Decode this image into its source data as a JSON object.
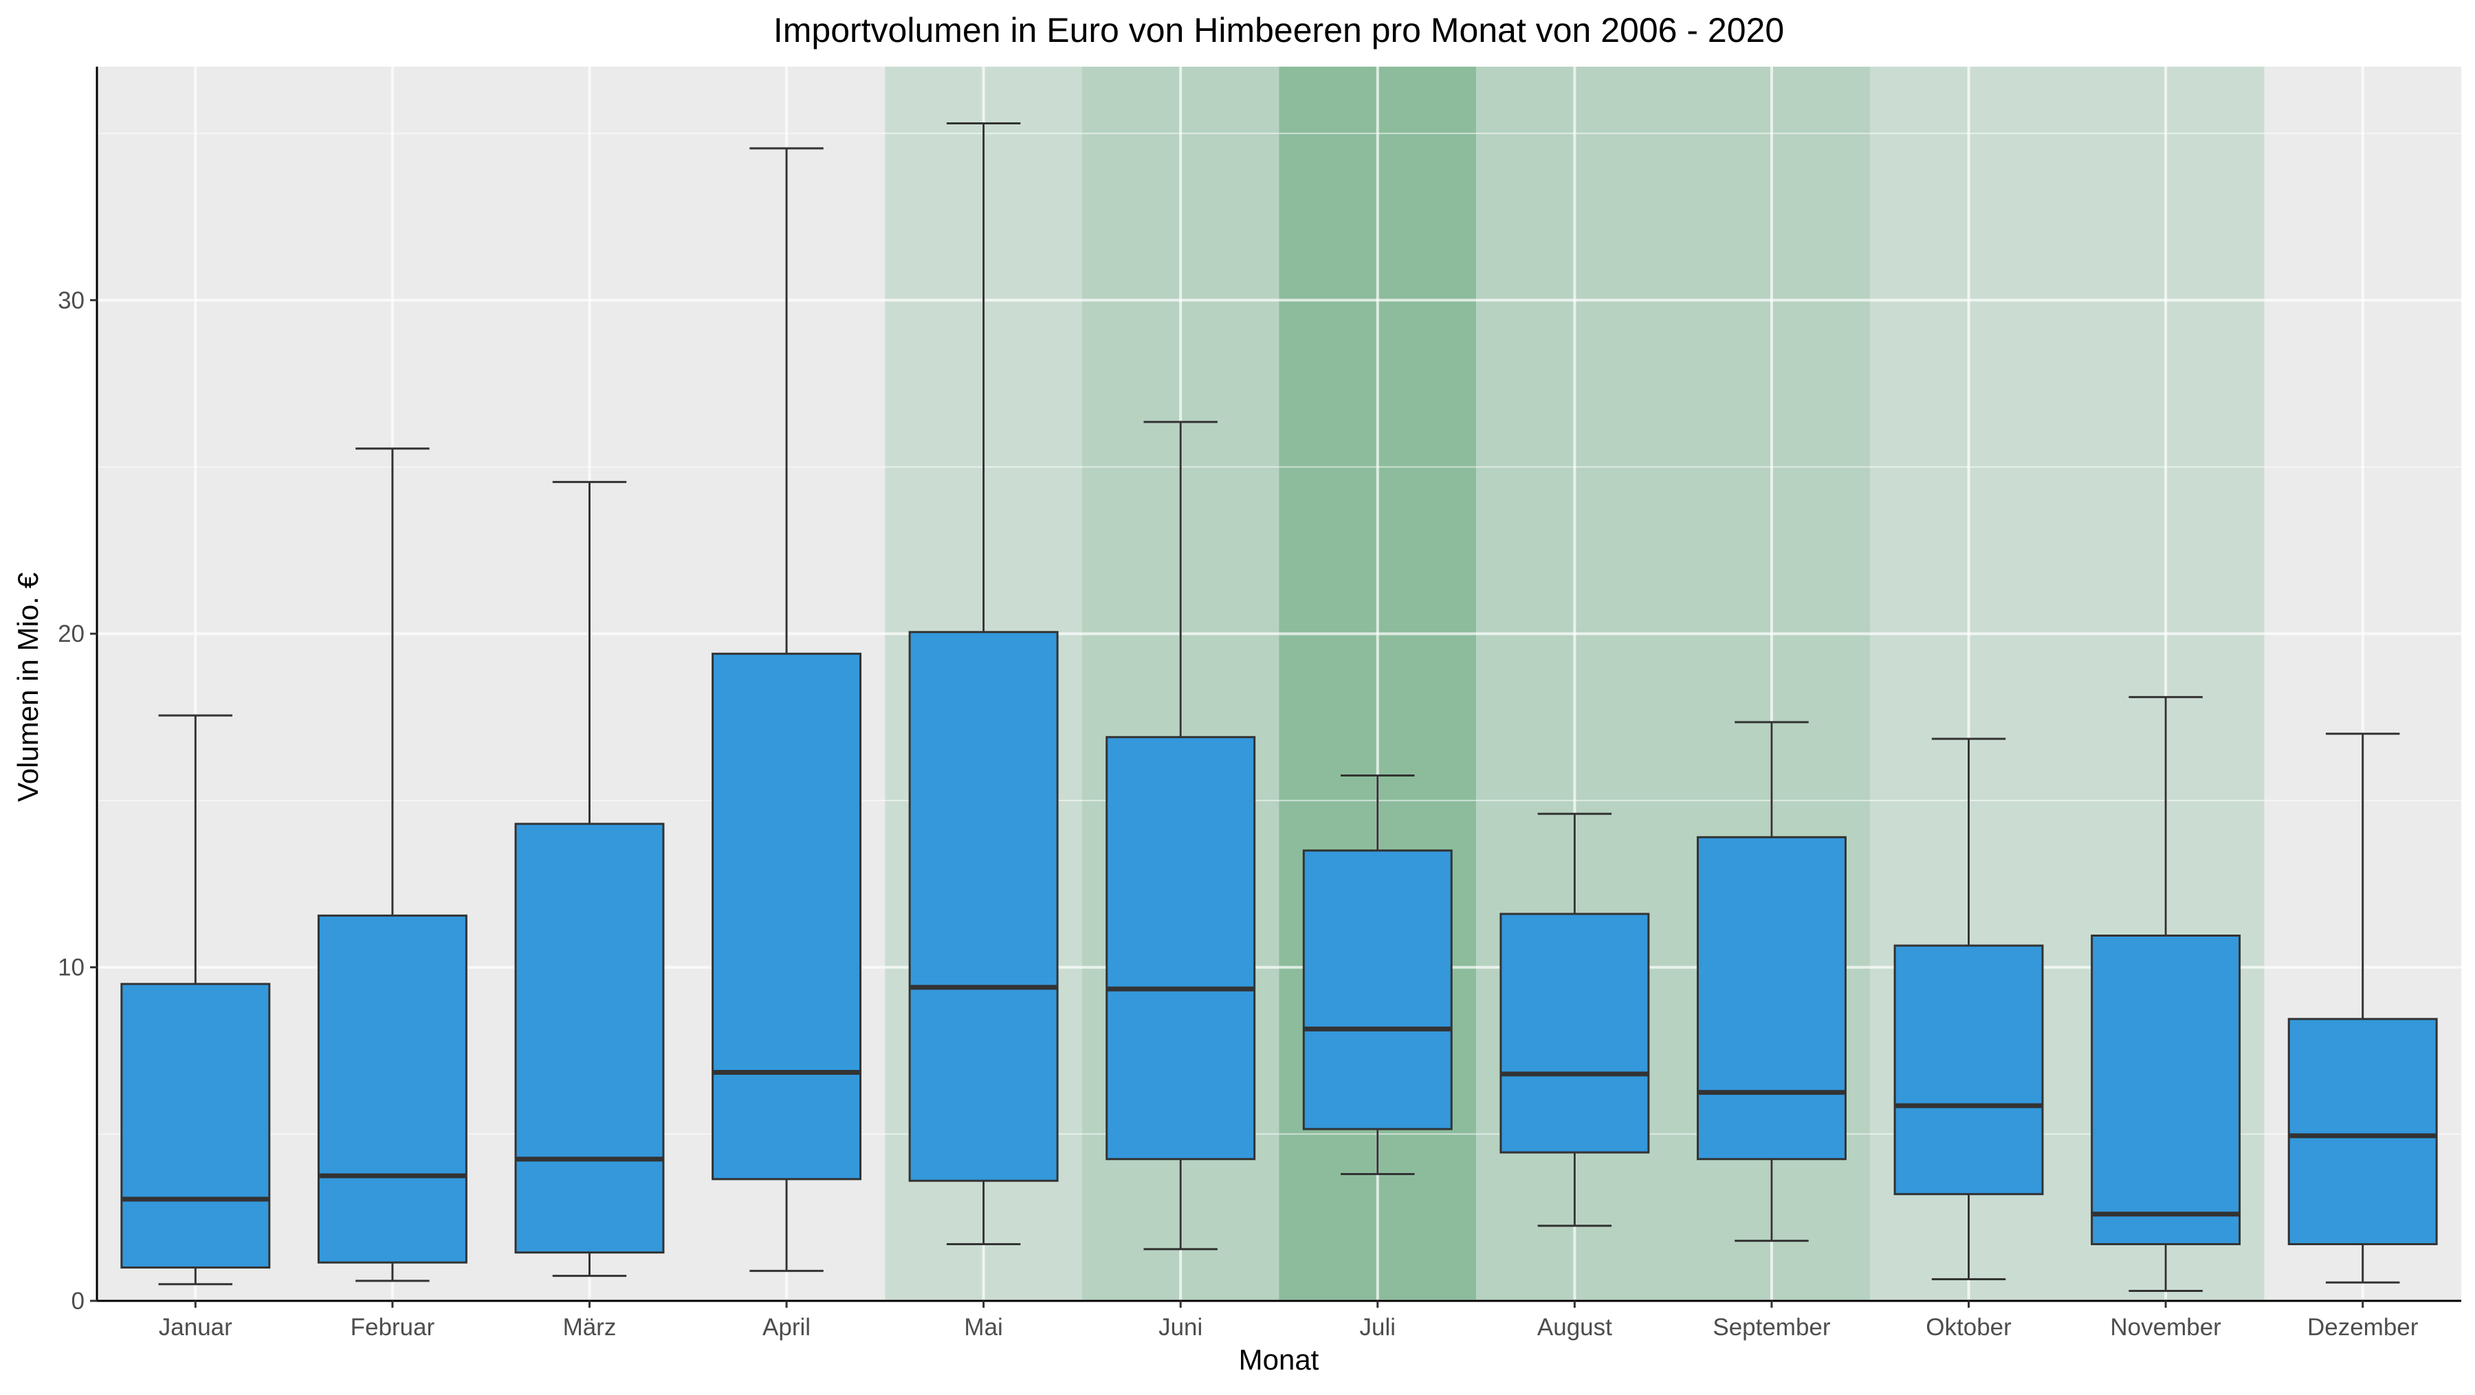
{
  "chart_data": {
    "type": "boxplot",
    "title": "Importvolumen in Euro von Himbeeren pro Monat von 2006 - 2020",
    "xlabel": "Monat",
    "ylabel": "Volumen in Mio. €",
    "ylim": [
      0,
      37
    ],
    "yticks": [
      0,
      10,
      20,
      30
    ],
    "grid": true,
    "categories": [
      "Januar",
      "Februar",
      "März",
      "April",
      "Mai",
      "Juni",
      "Juli",
      "August",
      "September",
      "Oktober",
      "November",
      "Dezember"
    ],
    "boxes": [
      {
        "min": 0.5,
        "q1": 1.0,
        "median": 3.05,
        "q3": 9.5,
        "max": 17.55
      },
      {
        "min": 0.6,
        "q1": 1.15,
        "median": 3.75,
        "q3": 11.55,
        "max": 25.55
      },
      {
        "min": 0.75,
        "q1": 1.45,
        "median": 4.25,
        "q3": 14.3,
        "max": 24.55
      },
      {
        "min": 0.9,
        "q1": 3.65,
        "median": 6.85,
        "q3": 19.4,
        "max": 34.55
      },
      {
        "min": 1.7,
        "q1": 3.6,
        "median": 9.4,
        "q3": 20.05,
        "max": 35.3
      },
      {
        "min": 1.55,
        "q1": 4.25,
        "median": 9.35,
        "q3": 16.9,
        "max": 26.35
      },
      {
        "min": 3.8,
        "q1": 5.15,
        "median": 8.15,
        "q3": 13.5,
        "max": 15.75
      },
      {
        "min": 2.25,
        "q1": 4.45,
        "median": 6.8,
        "q3": 11.6,
        "max": 14.6
      },
      {
        "min": 1.8,
        "q1": 4.25,
        "median": 6.25,
        "q3": 13.9,
        "max": 17.35
      },
      {
        "min": 0.65,
        "q1": 3.2,
        "median": 5.85,
        "q3": 10.65,
        "max": 16.85
      },
      {
        "min": 0.3,
        "q1": 1.7,
        "median": 2.6,
        "q3": 10.95,
        "max": 18.1
      },
      {
        "min": 0.55,
        "q1": 1.7,
        "median": 4.95,
        "q3": 8.45,
        "max": 17.0
      }
    ],
    "season_shading": [
      {
        "from": "Mai",
        "to": "Mai",
        "color": "#cbddd2"
      },
      {
        "from": "Juni",
        "to": "Juni",
        "color": "#b7d2c1"
      },
      {
        "from": "Juli",
        "to": "Juli",
        "color": "#8cbc9c"
      },
      {
        "from": "August",
        "to": "September",
        "color": "#b7d2c1"
      },
      {
        "from": "Oktober",
        "to": "November",
        "color": "#cbddd2"
      }
    ],
    "colors": {
      "box_fill": "#3498db",
      "box_stroke": "#333333",
      "panel_background": "#ebebeb",
      "grid": "#ffffff"
    }
  }
}
